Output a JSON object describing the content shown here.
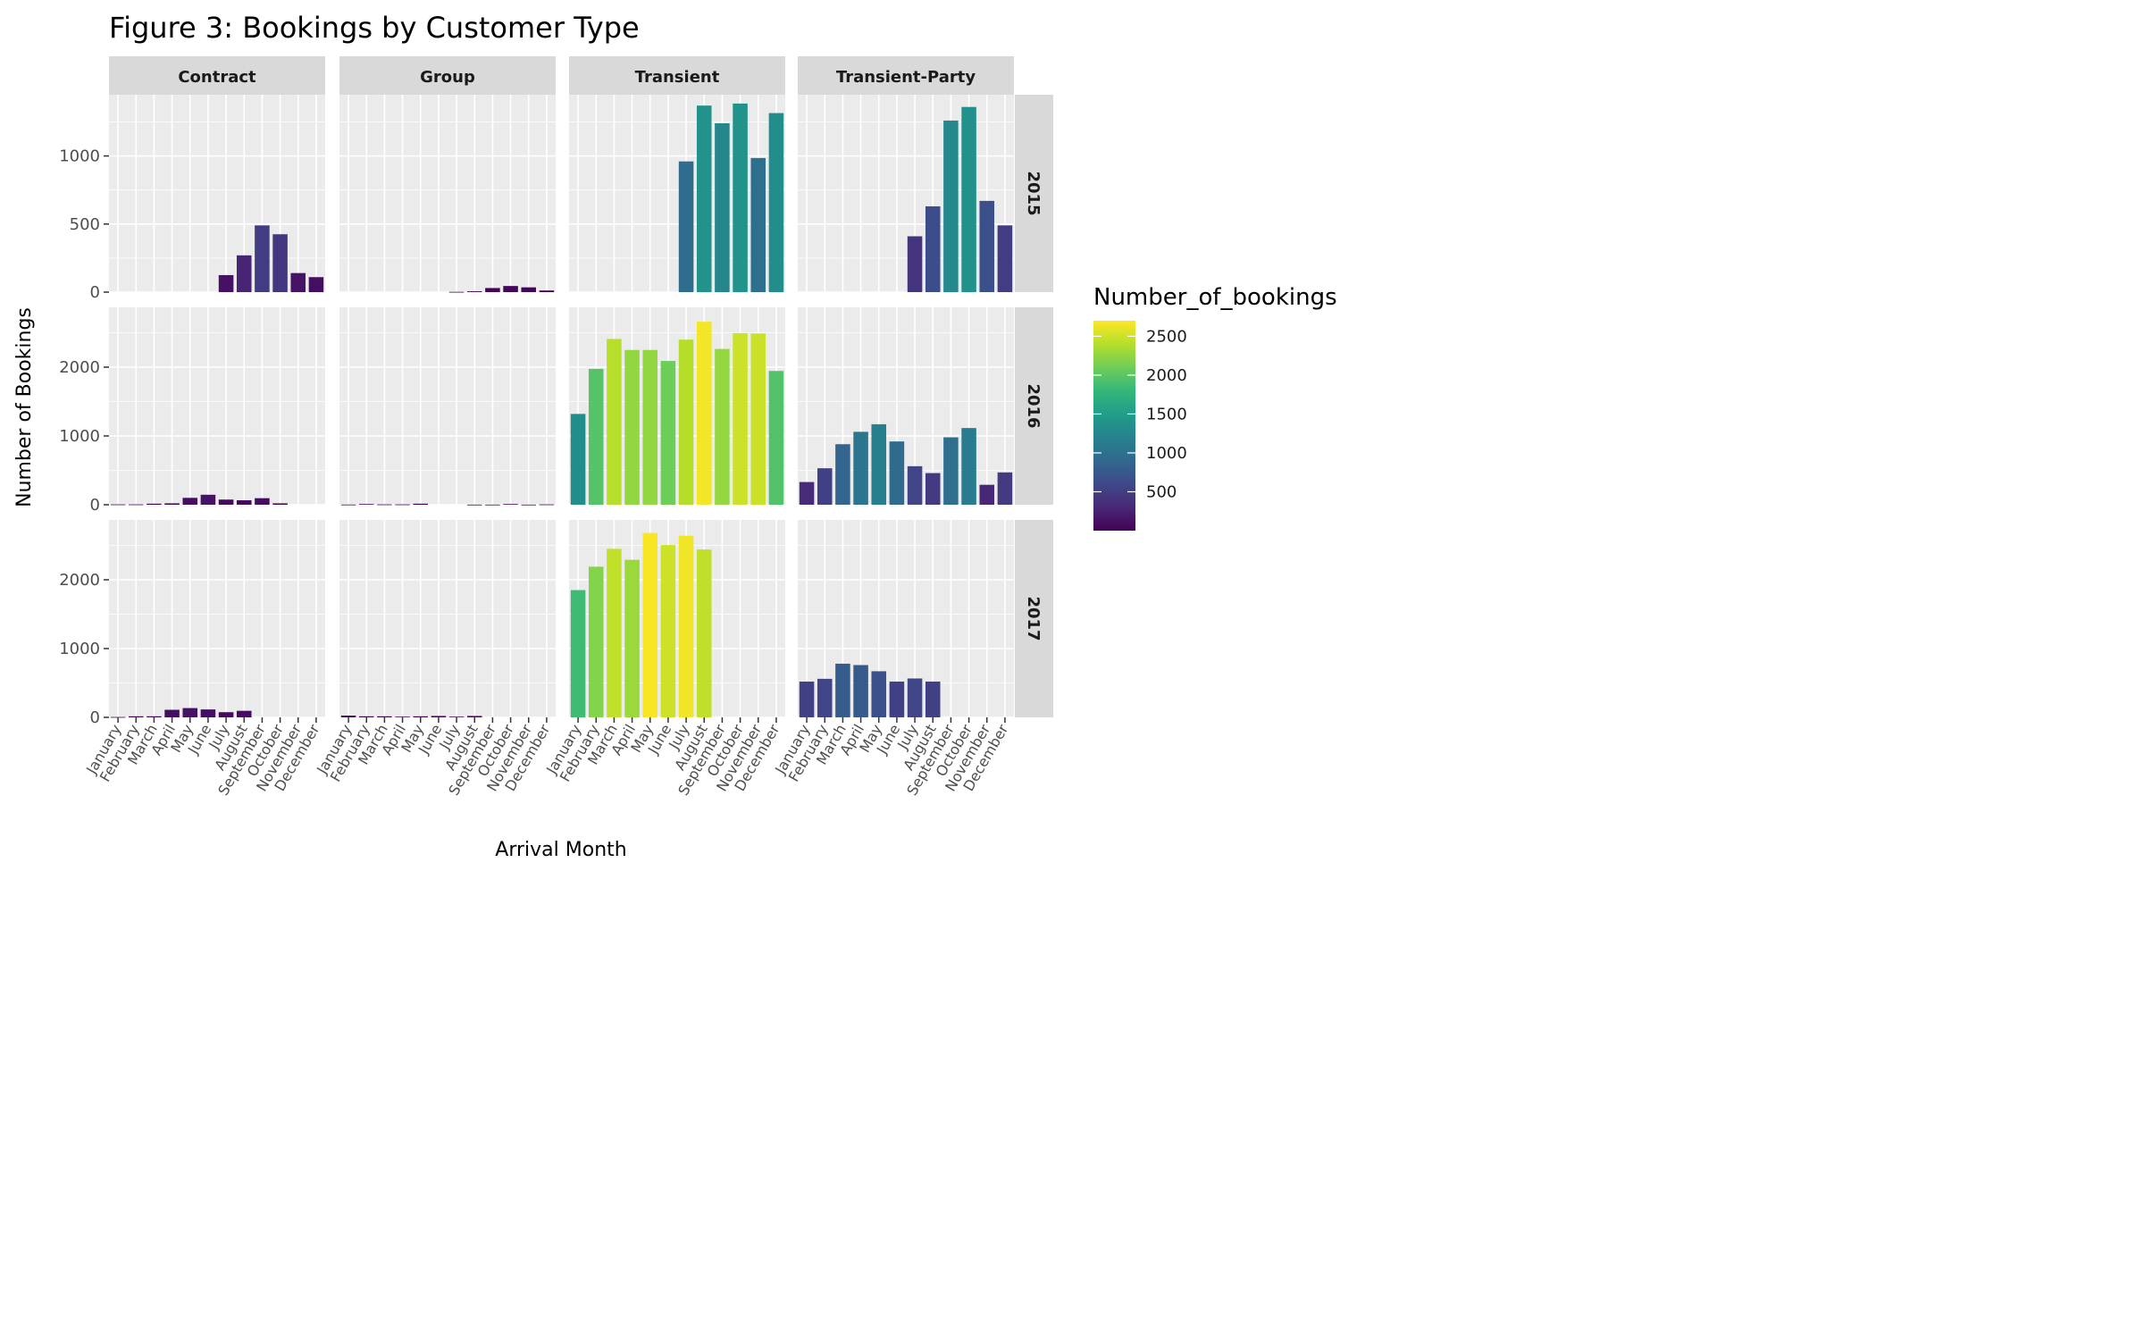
{
  "chart_data": {
    "type": "bar",
    "title": "Figure 3: Bookings by Customer Type",
    "xlabel": "Arrival Month",
    "ylabel": "Number of Bookings",
    "months": [
      "January",
      "February",
      "March",
      "April",
      "May",
      "June",
      "July",
      "August",
      "September",
      "October",
      "November",
      "December"
    ],
    "facet_columns": [
      "Contract",
      "Group",
      "Transient",
      "Transient-Party"
    ],
    "facet_rows": [
      "2015",
      "2016",
      "2017"
    ],
    "row_ylim": [
      [
        0,
        1450
      ],
      [
        0,
        2870
      ],
      [
        0,
        2870
      ]
    ],
    "row_yticks": [
      [
        "0",
        "500",
        "1000"
      ],
      [
        "0",
        "1000",
        "2000"
      ],
      [
        "0",
        "1000",
        "2000"
      ]
    ],
    "row_ytick_values": [
      [
        0,
        500,
        1000
      ],
      [
        0,
        1000,
        2000
      ],
      [
        0,
        1000,
        2000
      ]
    ],
    "panels": {
      "2015": {
        "Contract": [
          null,
          null,
          null,
          null,
          null,
          null,
          125,
          270,
          490,
          425,
          140,
          110
        ],
        "Group": [
          null,
          null,
          null,
          null,
          null,
          null,
          2,
          6,
          30,
          45,
          35,
          12
        ],
        "Transient": [
          null,
          null,
          null,
          null,
          null,
          null,
          960,
          1370,
          1240,
          1385,
          985,
          1315
        ],
        "Transient-Party": [
          null,
          null,
          null,
          null,
          null,
          null,
          410,
          630,
          1260,
          1360,
          670,
          490
        ]
      },
      "2016": {
        "Contract": [
          5,
          5,
          15,
          20,
          100,
          145,
          75,
          65,
          95,
          20,
          null,
          null
        ],
        "Group": [
          3,
          10,
          5,
          5,
          15,
          null,
          null,
          2,
          2,
          10,
          2,
          5
        ],
        "Transient": [
          1320,
          1975,
          2410,
          2250,
          2250,
          2090,
          2400,
          2660,
          2265,
          2495,
          2490,
          1945
        ],
        "Transient-Party": [
          330,
          530,
          880,
          1060,
          1170,
          920,
          560,
          460,
          980,
          1115,
          290,
          470
        ]
      },
      "2017": {
        "Contract": [
          5,
          15,
          15,
          110,
          135,
          115,
          75,
          95,
          null,
          null,
          null,
          null
        ],
        "Group": [
          25,
          15,
          15,
          10,
          15,
          20,
          10,
          20,
          null,
          null,
          null,
          null
        ],
        "Transient": [
          1850,
          2190,
          2450,
          2290,
          2680,
          2505,
          2640,
          2440,
          null,
          null,
          null,
          null
        ],
        "Transient-Party": [
          520,
          560,
          780,
          760,
          670,
          520,
          565,
          520,
          null,
          null,
          null,
          null
        ]
      }
    },
    "legend": {
      "title": "Number_of_bookings",
      "labels": [
        "500",
        "1000",
        "1500",
        "2000",
        "2500"
      ],
      "values": [
        500,
        1000,
        1500,
        2000,
        2500
      ],
      "range": [
        0,
        2700
      ],
      "position": "right",
      "palette": "viridis",
      "colors": [
        "#440154",
        "#482878",
        "#3e4989",
        "#31688e",
        "#26828e",
        "#1f9e89",
        "#35b779",
        "#6ece58",
        "#b5de2b",
        "#fde725"
      ]
    },
    "grid": true,
    "panel_background": "#ebebeb",
    "strip_background": "#d9d9d9"
  }
}
